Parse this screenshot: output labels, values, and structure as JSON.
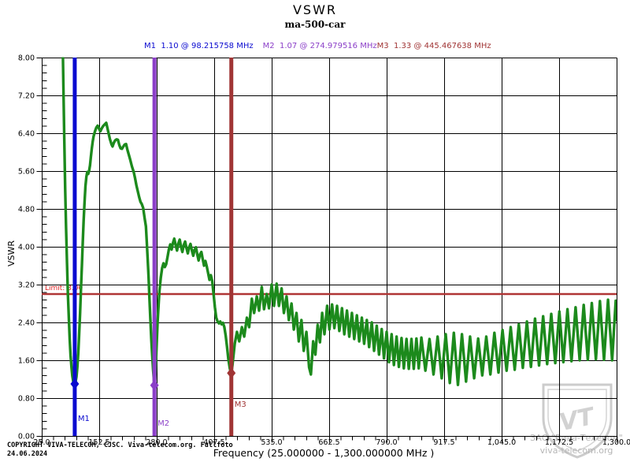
{
  "header": {
    "title": "VSWR",
    "subtitle": "ma-500-car"
  },
  "markers": [
    {
      "id": "M1",
      "label": "M1",
      "text": "M1  1.10 @ 98.215758 MHz",
      "freq_mhz": 98.215758,
      "vswr": 1.1,
      "color": "#0a0ad0"
    },
    {
      "id": "M2",
      "label": "M2",
      "text": "M2  1.07 @ 274.979516 MHz",
      "freq_mhz": 274.979516,
      "vswr": 1.07,
      "color": "#8b3fc8"
    },
    {
      "id": "M3",
      "label": "M3",
      "text": "M3  1.33 @ 445.467638 MHz",
      "freq_mhz": 445.467638,
      "vswr": 1.33,
      "color": "#a03434"
    }
  ],
  "limit": {
    "label": "Limit: 3.00",
    "value": 3.0,
    "line_color": "#b03535",
    "label_color": "#e02020"
  },
  "axes": {
    "y_label": "VSWR",
    "x_title": "Frequency (25.000000 - 1,300.000000 MHz )",
    "x_tick_labels": [
      "25.0",
      "152.5",
      "280.0",
      "407.5",
      "535.0",
      "662.5",
      "790.0",
      "917.5",
      "1,045.0",
      "1,172.5",
      "1,300.0"
    ],
    "y_tick_labels": [
      "8.00",
      "7.20",
      "6.40",
      "5.60",
      "4.80",
      "4.00",
      "3.20",
      "2.40",
      "1.60",
      "0.80",
      "0.00"
    ]
  },
  "footer": {
    "copyright": "COPYRIGHT VIVA-TELECOM, CJSC. Viva-telecom.org. Fullfoto",
    "date": "24.06.2024"
  },
  "watermark": {
    "line1": "ЗАО \"Вива-Телеком\"",
    "line2": "viva-telecom.org",
    "monogram": "VT"
  },
  "chart_data": {
    "type": "line",
    "title": "VSWR",
    "subtitle": "ma-500-car",
    "xlabel": "Frequency (25.000000 - 1,300.000000 MHz )",
    "ylabel": "VSWR",
    "xlim": [
      25,
      1300
    ],
    "ylim": [
      0,
      8
    ],
    "grid": true,
    "x_major_ticks": [
      25,
      152.5,
      280,
      407.5,
      535,
      662.5,
      790,
      917.5,
      1045,
      1172.5,
      1300
    ],
    "y_major_ticks": [
      0,
      0.8,
      1.6,
      2.4,
      3.2,
      4.0,
      4.8,
      5.6,
      6.4,
      7.2,
      8.0
    ],
    "x_minor_per_major": 5,
    "y_minor_per_major": 5,
    "series_color": "#1c8a1c",
    "limit_value": 3.0,
    "marker_points": [
      [
        98.215758,
        1.1
      ],
      [
        274.979516,
        1.07
      ],
      [
        445.467638,
        1.33
      ]
    ],
    "points": [
      [
        71.5,
        8.35
      ],
      [
        73,
        7.4
      ],
      [
        75,
        6.3
      ],
      [
        77,
        5.2
      ],
      [
        79,
        4.4
      ],
      [
        81,
        3.65
      ],
      [
        83,
        3.0
      ],
      [
        85,
        2.5
      ],
      [
        87,
        2.05
      ],
      [
        89,
        1.7
      ],
      [
        91,
        1.45
      ],
      [
        93,
        1.26
      ],
      [
        95,
        1.14
      ],
      [
        96.5,
        1.11
      ],
      [
        98.22,
        1.1
      ],
      [
        100,
        1.14
      ],
      [
        102,
        1.25
      ],
      [
        104,
        1.45
      ],
      [
        106,
        1.75
      ],
      [
        108,
        2.15
      ],
      [
        110,
        2.6
      ],
      [
        112,
        3.1
      ],
      [
        114,
        3.6
      ],
      [
        116,
        4.1
      ],
      [
        118,
        4.55
      ],
      [
        120,
        4.95
      ],
      [
        122,
        5.28
      ],
      [
        124,
        5.48
      ],
      [
        126,
        5.58
      ],
      [
        128,
        5.54
      ],
      [
        130,
        5.6
      ],
      [
        132,
        5.72
      ],
      [
        134,
        5.9
      ],
      [
        136,
        6.08
      ],
      [
        138,
        6.22
      ],
      [
        140,
        6.33
      ],
      [
        143,
        6.44
      ],
      [
        146,
        6.52
      ],
      [
        149,
        6.56
      ],
      [
        152,
        6.5
      ],
      [
        155,
        6.44
      ],
      [
        158,
        6.5
      ],
      [
        161,
        6.55
      ],
      [
        164,
        6.58
      ],
      [
        168,
        6.62
      ],
      [
        172,
        6.45
      ],
      [
        176,
        6.28
      ],
      [
        180,
        6.16
      ],
      [
        182,
        6.12
      ],
      [
        185,
        6.2
      ],
      [
        188,
        6.25
      ],
      [
        191,
        6.27
      ],
      [
        194,
        6.26
      ],
      [
        197,
        6.15
      ],
      [
        200,
        6.08
      ],
      [
        203,
        6.07
      ],
      [
        206,
        6.12
      ],
      [
        209,
        6.16
      ],
      [
        212,
        6.17
      ],
      [
        215,
        6.05
      ],
      [
        218,
        5.95
      ],
      [
        221,
        5.85
      ],
      [
        225,
        5.7
      ],
      [
        229,
        5.58
      ],
      [
        232,
        5.45
      ],
      [
        235,
        5.3
      ],
      [
        238,
        5.17
      ],
      [
        241,
        5.05
      ],
      [
        244,
        4.95
      ],
      [
        247,
        4.9
      ],
      [
        250,
        4.82
      ],
      [
        253,
        4.62
      ],
      [
        256,
        4.43
      ],
      [
        258,
        4.1
      ],
      [
        260,
        3.75
      ],
      [
        262,
        3.35
      ],
      [
        264,
        2.9
      ],
      [
        266,
        2.45
      ],
      [
        268,
        2.05
      ],
      [
        270,
        1.7
      ],
      [
        272,
        1.4
      ],
      [
        274,
        1.15
      ],
      [
        274.98,
        1.07
      ],
      [
        276.5,
        1.2
      ],
      [
        278,
        1.5
      ],
      [
        280,
        1.95
      ],
      [
        282,
        2.4
      ],
      [
        284,
        2.75
      ],
      [
        286,
        3.05
      ],
      [
        289,
        3.35
      ],
      [
        292,
        3.55
      ],
      [
        295,
        3.65
      ],
      [
        298,
        3.57
      ],
      [
        301,
        3.63
      ],
      [
        304,
        3.78
      ],
      [
        307,
        3.95
      ],
      [
        310,
        4.05
      ],
      [
        313,
        3.94
      ],
      [
        316,
        4.08
      ],
      [
        319,
        4.17
      ],
      [
        322,
        4.04
      ],
      [
        325,
        3.92
      ],
      [
        328,
        4.07
      ],
      [
        331,
        4.15
      ],
      [
        334,
        4.0
      ],
      [
        337,
        3.89
      ],
      [
        340,
        4.04
      ],
      [
        343,
        4.11
      ],
      [
        346,
        3.97
      ],
      [
        349,
        3.86
      ],
      [
        352,
        3.99
      ],
      [
        355,
        4.06
      ],
      [
        358,
        3.92
      ],
      [
        361,
        3.81
      ],
      [
        364,
        3.94
      ],
      [
        367,
        3.99
      ],
      [
        370,
        3.84
      ],
      [
        373,
        3.71
      ],
      [
        376,
        3.84
      ],
      [
        379,
        3.89
      ],
      [
        382,
        3.74
      ],
      [
        385,
        3.6
      ],
      [
        388,
        3.7
      ],
      [
        391,
        3.58
      ],
      [
        394,
        3.44
      ],
      [
        397,
        3.3
      ],
      [
        400,
        3.4
      ],
      [
        403,
        3.28
      ],
      [
        406,
        3.02
      ],
      [
        409,
        2.72
      ],
      [
        412,
        2.5
      ],
      [
        415,
        2.42
      ],
      [
        418,
        2.38
      ],
      [
        421,
        2.42
      ],
      [
        424,
        2.36
      ],
      [
        427,
        2.39
      ],
      [
        430,
        2.3
      ],
      [
        433,
        2.12
      ],
      [
        436,
        1.88
      ],
      [
        439,
        1.62
      ],
      [
        442,
        1.43
      ],
      [
        444,
        1.36
      ],
      [
        445.47,
        1.33
      ],
      [
        448,
        1.5
      ],
      [
        453,
        1.95
      ],
      [
        458,
        2.2
      ],
      [
        463,
        2.0
      ],
      [
        469,
        2.3
      ],
      [
        474,
        2.1
      ],
      [
        480,
        2.5
      ],
      [
        485,
        2.3
      ],
      [
        491,
        2.9
      ],
      [
        496,
        2.6
      ],
      [
        502,
        2.95
      ],
      [
        507,
        2.65
      ],
      [
        513,
        3.15
      ],
      [
        518,
        2.68
      ],
      [
        524,
        3.0
      ],
      [
        529,
        2.7
      ],
      [
        535,
        3.2
      ],
      [
        540,
        2.75
      ],
      [
        546,
        3.22
      ],
      [
        551,
        2.75
      ],
      [
        557,
        3.12
      ],
      [
        562,
        2.6
      ],
      [
        568,
        2.95
      ],
      [
        573,
        2.45
      ],
      [
        579,
        2.8
      ],
      [
        584,
        2.25
      ],
      [
        590,
        2.6
      ],
      [
        595,
        2.0
      ],
      [
        601,
        2.45
      ],
      [
        606,
        1.8
      ],
      [
        612,
        2.2
      ],
      [
        618,
        1.45
      ],
      [
        622,
        1.3
      ],
      [
        627,
        2.0
      ],
      [
        632,
        1.72
      ],
      [
        637,
        2.35
      ],
      [
        642,
        1.98
      ],
      [
        647,
        2.6
      ],
      [
        652,
        2.15
      ],
      [
        658,
        2.75
      ],
      [
        663,
        2.25
      ],
      [
        669,
        2.78
      ],
      [
        674,
        2.28
      ],
      [
        680,
        2.75
      ],
      [
        685,
        2.22
      ],
      [
        691,
        2.7
      ],
      [
        696,
        2.15
      ],
      [
        702,
        2.65
      ],
      [
        707,
        2.1
      ],
      [
        713,
        2.6
      ],
      [
        718,
        2.05
      ],
      [
        724,
        2.55
      ],
      [
        729,
        2.0
      ],
      [
        735,
        2.5
      ],
      [
        740,
        1.95
      ],
      [
        746,
        2.45
      ],
      [
        751,
        1.88
      ],
      [
        757,
        2.4
      ],
      [
        762,
        1.8
      ],
      [
        768,
        2.33
      ],
      [
        773,
        1.72
      ],
      [
        779,
        2.26
      ],
      [
        784,
        1.64
      ],
      [
        790,
        2.2
      ],
      [
        795,
        1.56
      ],
      [
        801,
        2.15
      ],
      [
        806,
        1.5
      ],
      [
        812,
        2.1
      ],
      [
        817,
        1.46
      ],
      [
        823,
        2.07
      ],
      [
        828,
        1.43
      ],
      [
        834,
        2.05
      ],
      [
        839,
        1.42
      ],
      [
        845,
        2.05
      ],
      [
        850,
        1.42
      ],
      [
        856,
        2.06
      ],
      [
        861,
        1.43
      ],
      [
        867,
        2.08
      ],
      [
        876,
        1.38
      ],
      [
        885,
        2.05
      ],
      [
        894,
        1.3
      ],
      [
        903,
        2.1
      ],
      [
        912,
        1.22
      ],
      [
        921,
        2.15
      ],
      [
        930,
        1.12
      ],
      [
        939,
        2.18
      ],
      [
        948,
        1.08
      ],
      [
        957,
        2.15
      ],
      [
        966,
        1.15
      ],
      [
        975,
        2.1
      ],
      [
        984,
        1.22
      ],
      [
        993,
        2.06
      ],
      [
        1002,
        1.28
      ],
      [
        1011,
        2.1
      ],
      [
        1020,
        1.3
      ],
      [
        1029,
        2.18
      ],
      [
        1038,
        1.34
      ],
      [
        1047,
        2.24
      ],
      [
        1056,
        1.38
      ],
      [
        1065,
        2.3
      ],
      [
        1074,
        1.4
      ],
      [
        1083,
        2.36
      ],
      [
        1092,
        1.44
      ],
      [
        1101,
        2.42
      ],
      [
        1110,
        1.46
      ],
      [
        1119,
        2.48
      ],
      [
        1128,
        1.49
      ],
      [
        1137,
        2.53
      ],
      [
        1146,
        1.52
      ],
      [
        1155,
        2.58
      ],
      [
        1164,
        1.54
      ],
      [
        1173,
        2.63
      ],
      [
        1182,
        1.56
      ],
      [
        1191,
        2.68
      ],
      [
        1200,
        1.58
      ],
      [
        1209,
        2.72
      ],
      [
        1218,
        1.6
      ],
      [
        1227,
        2.77
      ],
      [
        1236,
        1.61
      ],
      [
        1245,
        2.81
      ],
      [
        1254,
        1.62
      ],
      [
        1263,
        2.85
      ],
      [
        1272,
        1.61
      ],
      [
        1281,
        2.88
      ],
      [
        1290,
        1.6
      ],
      [
        1298,
        2.86
      ],
      [
        1300,
        2.45
      ]
    ]
  }
}
